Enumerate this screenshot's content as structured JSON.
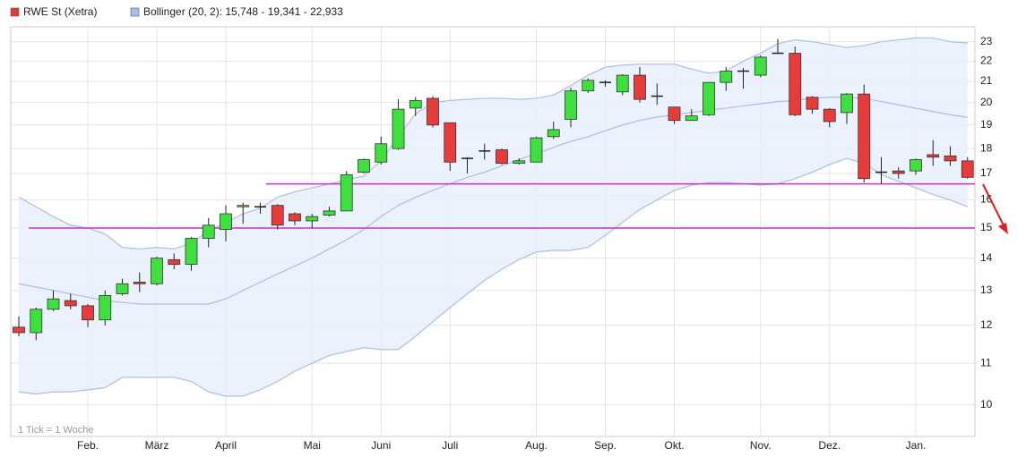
{
  "chart_data": {
    "type": "candlestick",
    "note": "1 Tick = 1 Woche",
    "log_scale": true,
    "grid": true,
    "ylim": [
      9.3,
      23.8
    ],
    "yticks": [
      10,
      11,
      12,
      13,
      14,
      15,
      16,
      17,
      18,
      19,
      20,
      21,
      22,
      23
    ],
    "categories": [
      null,
      null,
      null,
      null,
      "Feb.",
      null,
      null,
      null,
      "März",
      null,
      null,
      null,
      "April",
      null,
      null,
      null,
      null,
      "Mai",
      null,
      null,
      null,
      "Juni",
      null,
      null,
      null,
      "Juli",
      null,
      null,
      null,
      null,
      "Aug.",
      null,
      null,
      null,
      "Sep.",
      null,
      null,
      null,
      "Okt.",
      null,
      null,
      null,
      null,
      "Nov.",
      null,
      null,
      null,
      "Dez.",
      null,
      null,
      null,
      null,
      "Jan.",
      null,
      null,
      null
    ],
    "series": [
      {
        "name": "RWE St (Xetra)",
        "color": "#e03a3a",
        "up_color": "#3de03d",
        "down_color": "#e83c3c",
        "open": [
          11.95,
          11.8,
          12.45,
          12.7,
          12.55,
          12.15,
          12.9,
          13.25,
          13.2,
          13.95,
          13.8,
          14.65,
          14.95,
          15.75,
          15.75,
          15.8,
          15.5,
          15.25,
          15.45,
          15.6,
          17.05,
          17.45,
          18.0,
          19.75,
          20.2,
          19.1,
          17.6,
          17.9,
          17.95,
          17.4,
          17.45,
          18.5,
          19.25,
          20.55,
          20.95,
          20.5,
          21.3,
          20.3,
          19.8,
          19.2,
          19.45,
          20.95,
          21.5,
          21.3,
          22.4,
          22.4,
          20.25,
          19.7,
          19.55,
          20.4,
          17.05,
          17.1,
          17.1,
          17.75,
          17.7,
          17.5
        ],
        "high": [
          12.25,
          12.5,
          13.0,
          12.9,
          12.6,
          13.0,
          13.35,
          13.55,
          14.05,
          14.15,
          14.7,
          15.35,
          15.8,
          15.9,
          15.9,
          15.85,
          15.55,
          15.5,
          15.75,
          17.1,
          17.6,
          18.5,
          20.15,
          20.25,
          20.3,
          19.1,
          17.65,
          18.2,
          18.0,
          17.6,
          18.5,
          19.15,
          20.7,
          21.15,
          21.05,
          21.35,
          21.7,
          20.9,
          19.8,
          19.7,
          20.95,
          21.7,
          21.65,
          22.3,
          23.15,
          22.75,
          20.3,
          19.75,
          20.45,
          20.85,
          17.65,
          17.25,
          17.6,
          18.35,
          18.1,
          17.65
        ],
        "low": [
          11.7,
          11.6,
          12.4,
          12.45,
          11.95,
          12.0,
          12.85,
          12.95,
          13.15,
          13.65,
          13.6,
          14.35,
          14.55,
          15.15,
          15.5,
          14.95,
          15.1,
          15.0,
          15.4,
          15.6,
          17.0,
          17.35,
          17.95,
          19.4,
          18.9,
          17.1,
          17.0,
          17.55,
          17.35,
          17.35,
          17.45,
          18.4,
          18.9,
          20.45,
          20.75,
          20.35,
          20.0,
          19.9,
          19.05,
          19.2,
          19.4,
          20.55,
          20.65,
          21.2,
          22.4,
          19.4,
          19.5,
          18.9,
          19.05,
          16.65,
          16.6,
          16.8,
          16.95,
          17.3,
          17.3,
          16.8
        ],
        "close": [
          11.8,
          12.45,
          12.75,
          12.55,
          12.15,
          12.85,
          13.2,
          13.2,
          14.0,
          13.8,
          14.65,
          15.1,
          15.5,
          15.8,
          15.75,
          15.1,
          15.25,
          15.4,
          15.6,
          16.95,
          17.55,
          18.2,
          19.7,
          20.1,
          19.0,
          17.45,
          17.6,
          17.9,
          17.4,
          17.5,
          18.45,
          18.8,
          20.55,
          21.05,
          20.95,
          21.3,
          20.15,
          20.3,
          19.2,
          19.4,
          20.95,
          21.5,
          21.5,
          22.2,
          22.4,
          19.45,
          19.7,
          19.15,
          20.4,
          16.8,
          17.05,
          17.0,
          17.55,
          17.65,
          17.5,
          16.85
        ]
      }
    ],
    "bollinger": {
      "name": "Bollinger (20, 2): 15,748 - 19,341 - 22,933",
      "color": "#a9bfe9",
      "fill": "#e8effd",
      "upper": [
        16.1,
        15.75,
        15.4,
        15.1,
        15.0,
        14.8,
        14.35,
        14.3,
        14.35,
        14.3,
        14.5,
        14.9,
        15.2,
        15.5,
        15.7,
        16.1,
        16.3,
        16.45,
        16.6,
        16.75,
        16.9,
        17.5,
        18.5,
        19.5,
        20.0,
        20.1,
        20.15,
        20.2,
        20.2,
        20.15,
        20.2,
        20.35,
        20.8,
        21.3,
        21.7,
        21.8,
        21.85,
        21.85,
        21.85,
        21.6,
        21.4,
        21.5,
        22.0,
        22.4,
        22.9,
        23.1,
        23.0,
        22.85,
        22.7,
        22.8,
        23.0,
        23.1,
        23.2,
        23.2,
        23.0,
        22.93
      ],
      "middle": [
        13.2,
        13.1,
        13.0,
        12.9,
        12.8,
        12.7,
        12.65,
        12.6,
        12.6,
        12.6,
        12.6,
        12.6,
        12.75,
        13.0,
        13.25,
        13.5,
        13.75,
        14.0,
        14.3,
        14.6,
        14.95,
        15.4,
        15.8,
        16.1,
        16.35,
        16.6,
        16.85,
        17.05,
        17.3,
        17.55,
        17.8,
        18.05,
        18.3,
        18.5,
        18.75,
        19.0,
        19.2,
        19.35,
        19.45,
        19.55,
        19.65,
        19.75,
        19.85,
        19.95,
        20.05,
        20.1,
        20.2,
        20.25,
        20.25,
        20.2,
        20.05,
        19.9,
        19.75,
        19.6,
        19.45,
        19.34
      ],
      "lower": [
        10.3,
        10.25,
        10.3,
        10.3,
        10.35,
        10.4,
        10.65,
        10.65,
        10.65,
        10.65,
        10.55,
        10.3,
        10.2,
        10.2,
        10.35,
        10.55,
        10.8,
        11.0,
        11.2,
        11.3,
        11.4,
        11.35,
        11.35,
        11.7,
        12.1,
        12.5,
        12.9,
        13.3,
        13.65,
        13.95,
        14.2,
        14.25,
        14.25,
        14.35,
        14.75,
        15.2,
        15.65,
        16.0,
        16.35,
        16.55,
        16.65,
        16.65,
        16.6,
        16.55,
        16.6,
        16.8,
        17.05,
        17.35,
        17.6,
        17.4,
        16.95,
        16.7,
        16.45,
        16.2,
        16.0,
        15.75
      ]
    },
    "hlines": [
      15.0,
      16.6
    ],
    "hline_color": "#cc2fcc"
  }
}
